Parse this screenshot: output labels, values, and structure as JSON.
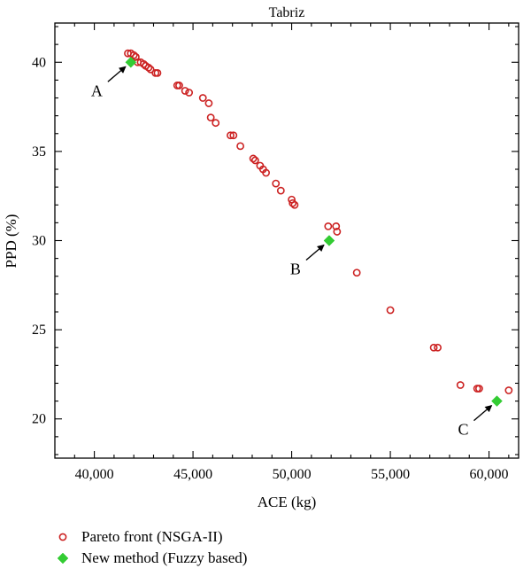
{
  "chart_data": {
    "type": "scatter",
    "title": "Tabriz",
    "xlabel": "ACE (kg)",
    "ylabel": "PPD (%)",
    "xlim": [
      38000,
      61500
    ],
    "ylim": [
      17.8,
      42.2
    ],
    "x_ticks": [
      40000,
      45000,
      50000,
      55000,
      60000
    ],
    "x_tick_labels": [
      "40,000",
      "45,000",
      "50,000",
      "55,000",
      "60,000"
    ],
    "y_ticks": [
      20,
      25,
      30,
      35,
      40
    ],
    "y_tick_labels": [
      "20",
      "25",
      "30",
      "35",
      "40"
    ],
    "grid": false,
    "legend_position": "bottom-left, below plot",
    "series": [
      {
        "name": "Pareto front (NSGA-II)",
        "marker": "open-circle",
        "color": "#cc2222",
        "points": [
          [
            41700,
            40.5
          ],
          [
            41850,
            40.5
          ],
          [
            42000,
            40.4
          ],
          [
            42100,
            40.3
          ],
          [
            42200,
            40.0
          ],
          [
            42350,
            40.0
          ],
          [
            42500,
            39.9
          ],
          [
            42600,
            39.8
          ],
          [
            42750,
            39.7
          ],
          [
            42850,
            39.6
          ],
          [
            43100,
            39.4
          ],
          [
            43200,
            39.4
          ],
          [
            44200,
            38.7
          ],
          [
            44300,
            38.7
          ],
          [
            44600,
            38.4
          ],
          [
            44800,
            38.3
          ],
          [
            45500,
            38.0
          ],
          [
            45800,
            37.7
          ],
          [
            45900,
            36.9
          ],
          [
            46150,
            36.6
          ],
          [
            46900,
            35.9
          ],
          [
            47050,
            35.9
          ],
          [
            47400,
            35.3
          ],
          [
            48050,
            34.6
          ],
          [
            48150,
            34.5
          ],
          [
            48400,
            34.2
          ],
          [
            48550,
            34.0
          ],
          [
            48700,
            33.8
          ],
          [
            49200,
            33.2
          ],
          [
            49450,
            32.8
          ],
          [
            50000,
            32.3
          ],
          [
            50050,
            32.1
          ],
          [
            50150,
            32.0
          ],
          [
            51850,
            30.8
          ],
          [
            52250,
            30.8
          ],
          [
            52300,
            30.5
          ],
          [
            53300,
            28.2
          ],
          [
            55000,
            26.1
          ],
          [
            57200,
            24.0
          ],
          [
            57400,
            24.0
          ],
          [
            58550,
            21.9
          ],
          [
            59400,
            21.7
          ],
          [
            59500,
            21.7
          ],
          [
            61000,
            21.6
          ]
        ]
      },
      {
        "name": "New method (Fuzzy based)",
        "marker": "filled-diamond",
        "color": "#33cc33",
        "points": [
          [
            41850,
            40.0
          ],
          [
            51900,
            30.0
          ],
          [
            60400,
            21.0
          ]
        ]
      }
    ],
    "annotations": [
      {
        "text": "A",
        "x": 41850,
        "y": 40.0
      },
      {
        "text": "B",
        "x": 51900,
        "y": 30.0
      },
      {
        "text": "C",
        "x": 60400,
        "y": 21.0
      }
    ]
  }
}
